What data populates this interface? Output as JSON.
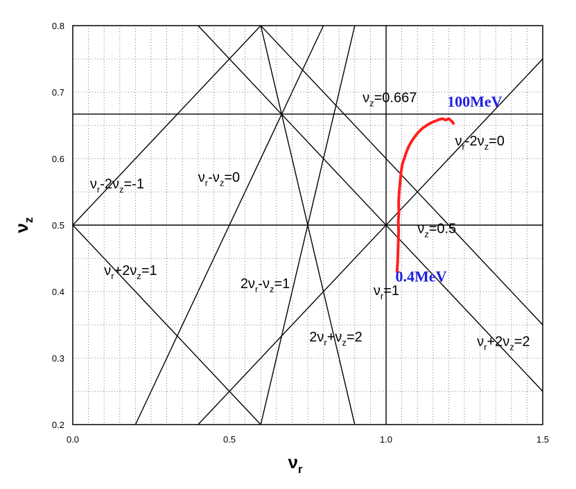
{
  "colors": {
    "trajectory": "#ff2020",
    "energy_label": "#2020e0",
    "grid": "#555555",
    "lines": "#000000"
  },
  "chart_data": {
    "type": "line",
    "title": "",
    "xlabel": {
      "main": "ν",
      "sub": "r"
    },
    "ylabel": {
      "main": "ν",
      "sub": "z"
    },
    "xlim": [
      0.0,
      1.5
    ],
    "ylim": [
      0.2,
      0.8
    ],
    "grid": true,
    "x_ticks": [
      {
        "v": 0.0,
        "label": "0.0"
      },
      {
        "v": 0.5,
        "label": "0.5"
      },
      {
        "v": 1.0,
        "label": "1.0"
      },
      {
        "v": 1.5,
        "label": "1.5"
      }
    ],
    "y_ticks": [
      {
        "v": 0.2,
        "label": "0.2"
      },
      {
        "v": 0.3,
        "label": "0.3"
      },
      {
        "v": 0.4,
        "label": "0.4"
      },
      {
        "v": 0.5,
        "label": "0.5"
      },
      {
        "v": 0.6,
        "label": "0.6"
      },
      {
        "v": 0.7,
        "label": "0.7"
      },
      {
        "v": 0.8,
        "label": "0.8"
      }
    ],
    "resonance_lines": [
      {
        "id": "nuz-0667",
        "a": 0,
        "b": 1,
        "c": 0.667,
        "parts": [
          {
            "t": "ν"
          },
          {
            "t": "z",
            "sub": true
          },
          {
            "t": "=0.667"
          }
        ],
        "lx": 0.925,
        "ly": 0.685
      },
      {
        "id": "nuz-05",
        "a": 0,
        "b": 1,
        "c": 0.5,
        "parts": [
          {
            "t": "ν"
          },
          {
            "t": "z",
            "sub": true
          },
          {
            "t": "=0.5"
          }
        ],
        "lx": 1.1,
        "ly": 0.488
      },
      {
        "id": "nur-1",
        "a": 1,
        "b": 0,
        "c": 1.0,
        "parts": [
          {
            "t": "ν"
          },
          {
            "t": "r",
            "sub": true
          },
          {
            "t": "=1"
          }
        ],
        "lx": 0.96,
        "ly": 0.395
      },
      {
        "id": "nur-m2nuz-0",
        "a": 1,
        "b": -2,
        "c": 0,
        "parts": [
          {
            "t": "ν"
          },
          {
            "t": "r",
            "sub": true
          },
          {
            "t": "-2ν"
          },
          {
            "t": "z",
            "sub": true
          },
          {
            "t": "=0"
          }
        ],
        "lx": 1.22,
        "ly": 0.62
      },
      {
        "id": "nur-m2nuz-m1",
        "a": 1,
        "b": -2,
        "c": -1,
        "parts": [
          {
            "t": "ν"
          },
          {
            "t": "r",
            "sub": true
          },
          {
            "t": "-2ν"
          },
          {
            "t": "z",
            "sub": true
          },
          {
            "t": "=-1"
          }
        ],
        "lx": 0.055,
        "ly": 0.555
      },
      {
        "id": "nur-mnuz-0",
        "a": 1,
        "b": -1,
        "c": 0,
        "parts": [
          {
            "t": "ν"
          },
          {
            "t": "r",
            "sub": true
          },
          {
            "t": "-ν"
          },
          {
            "t": "z",
            "sub": true
          },
          {
            "t": "=0"
          }
        ],
        "lx": 0.4,
        "ly": 0.565
      },
      {
        "id": "nur-p2nuz-1",
        "a": 1,
        "b": 2,
        "c": 1,
        "parts": [
          {
            "t": "ν"
          },
          {
            "t": "r",
            "sub": true
          },
          {
            "t": "+2ν"
          },
          {
            "t": "z",
            "sub": true
          },
          {
            "t": "=1"
          }
        ],
        "lx": 0.1,
        "ly": 0.425
      },
      {
        "id": "2nur-mnuz-1",
        "a": 2,
        "b": -1,
        "c": 1,
        "parts": [
          {
            "t": "2ν"
          },
          {
            "t": "r",
            "sub": true
          },
          {
            "t": "-ν"
          },
          {
            "t": "z",
            "sub": true
          },
          {
            "t": "=1"
          }
        ],
        "lx": 0.535,
        "ly": 0.405
      },
      {
        "id": "2nur-pnuz-2",
        "a": 2,
        "b": 1,
        "c": 2,
        "parts": [
          {
            "t": "2ν"
          },
          {
            "t": "r",
            "sub": true
          },
          {
            "t": "+ν"
          },
          {
            "t": "z",
            "sub": true
          },
          {
            "t": "=2"
          }
        ],
        "lx": 0.755,
        "ly": 0.325
      },
      {
        "id": "nur-p2nuz-2",
        "a": 1,
        "b": 2,
        "c": 2,
        "parts": [
          {
            "t": "ν"
          },
          {
            "t": "r",
            "sub": true
          },
          {
            "t": "+2ν"
          },
          {
            "t": "z",
            "sub": true
          },
          {
            "t": "=2"
          }
        ],
        "lx": 1.29,
        "ly": 0.318
      }
    ],
    "extra_lines": [
      {
        "id": "line-x06-y08",
        "x1": 0.6,
        "y1": 0.8,
        "x2": 1.5,
        "y2": 0.35
      }
    ],
    "series": [
      {
        "x": [
          1.035,
          1.037,
          1.038,
          1.039,
          1.04,
          1.039,
          1.041,
          1.04,
          1.042,
          1.045,
          1.048,
          1.052,
          1.058,
          1.065,
          1.072,
          1.08,
          1.09,
          1.1,
          1.11,
          1.12,
          1.13,
          1.14,
          1.15,
          1.16,
          1.17,
          1.18,
          1.19,
          1.2,
          1.21,
          1.215
        ],
        "y": [
          0.43,
          0.445,
          0.46,
          0.475,
          0.49,
          0.505,
          0.52,
          0.535,
          0.55,
          0.565,
          0.58,
          0.592,
          0.6,
          0.61,
          0.618,
          0.625,
          0.632,
          0.638,
          0.643,
          0.647,
          0.65,
          0.653,
          0.655,
          0.657,
          0.659,
          0.66,
          0.658,
          0.66,
          0.656,
          0.653
        ]
      }
    ],
    "annotations": [
      {
        "id": "energy-end",
        "text": "100MeV",
        "x": 1.195,
        "y": 0.678
      },
      {
        "id": "energy-start",
        "text": "0.4MeV",
        "x": 1.03,
        "y": 0.415
      }
    ]
  }
}
